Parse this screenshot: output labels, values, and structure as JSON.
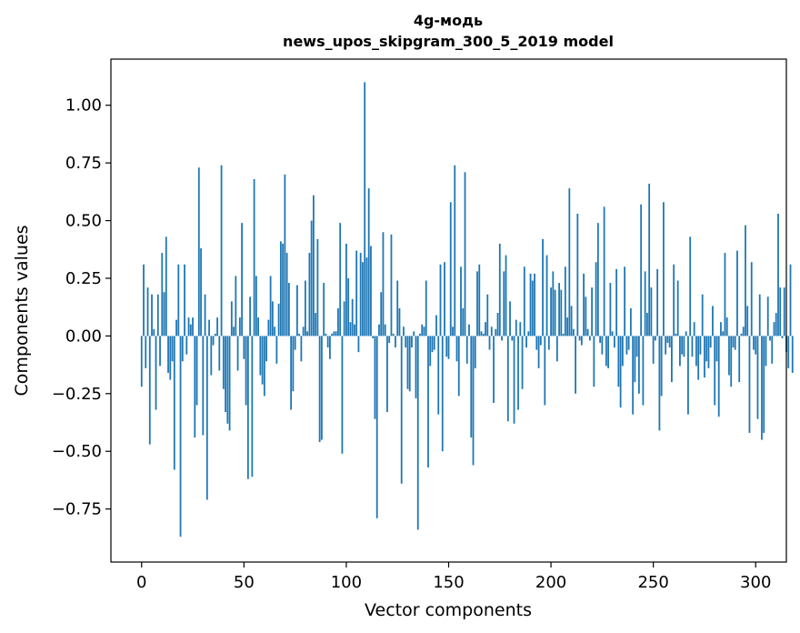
{
  "chart_data": {
    "type": "bar",
    "title": "4g-модь",
    "subtitle": "news_upos_skipgram_300_5_2019 model",
    "xlabel": "Vector components",
    "ylabel": "Components values",
    "xlim": [
      -15,
      315
    ],
    "ylim": [
      -0.98,
      1.2
    ],
    "xticks": [
      0,
      50,
      100,
      150,
      200,
      250,
      300
    ],
    "xtick_labels": [
      "0",
      "50",
      "100",
      "150",
      "200",
      "250",
      "300"
    ],
    "yticks": [
      1.0,
      0.75,
      0.5,
      0.25,
      0.0,
      -0.25,
      -0.5,
      -0.75
    ],
    "ytick_labels": [
      "1.00",
      "0.75",
      "0.50",
      "0.25",
      "0.00",
      "−0.25",
      "−0.50",
      "−0.75"
    ],
    "grid": false,
    "bar_color": "#1f77b4",
    "x_start": 0,
    "values": [
      -0.22,
      0.31,
      -0.14,
      0.21,
      -0.47,
      0.18,
      0.03,
      -0.32,
      0.18,
      -0.13,
      0.36,
      0.19,
      0.43,
      -0.16,
      -0.19,
      -0.11,
      -0.58,
      0.07,
      0.31,
      -0.87,
      -0.11,
      0.31,
      -0.08,
      0.08,
      0.05,
      0.08,
      -0.44,
      -0.3,
      0.73,
      0.38,
      -0.43,
      0.18,
      -0.71,
      0.07,
      -0.17,
      -0.04,
      0.01,
      0.08,
      -0.15,
      0.74,
      -0.23,
      -0.33,
      -0.38,
      -0.41,
      0.15,
      0.04,
      0.26,
      -0.15,
      0.08,
      0.49,
      -0.1,
      -0.3,
      -0.62,
      0.17,
      -0.61,
      0.68,
      0.26,
      0.08,
      -0.17,
      -0.21,
      -0.26,
      -0.11,
      0.07,
      0.26,
      0.15,
      0.04,
      -0.12,
      0.14,
      0.41,
      0.4,
      0.7,
      0.36,
      0.23,
      -0.32,
      -0.24,
      -0.06,
      0.22,
      0.01,
      -0.11,
      0.04,
      0.24,
      0.02,
      0.36,
      0.5,
      0.61,
      0.1,
      0.42,
      -0.46,
      -0.45,
      0.23,
      0.01,
      -0.05,
      -0.1,
      0.01,
      0.02,
      0.02,
      0.12,
      0.49,
      -0.51,
      0.15,
      0.4,
      0.25,
      0.06,
      0.16,
      0.05,
      0.37,
      -0.07,
      0.36,
      0.32,
      1.1,
      0.34,
      0.64,
      0.39,
      -0.01,
      -0.36,
      -0.79,
      0.05,
      0.19,
      0.45,
      0.05,
      -0.33,
      -0.03,
      0.44,
      0.01,
      -0.05,
      0.24,
      0.12,
      -0.64,
      0.04,
      -0.05,
      -0.23,
      -0.24,
      -0.05,
      0.02,
      -0.27,
      -0.84,
      0.01,
      0.05,
      0.04,
      0.24,
      -0.57,
      -0.13,
      -0.07,
      -0.06,
      0.09,
      -0.34,
      0.31,
      -0.5,
      0.32,
      -0.09,
      -0.1,
      0.58,
      0.04,
      0.74,
      -0.11,
      -0.26,
      0.3,
      0.12,
      0.71,
      -0.12,
      0.05,
      -0.44,
      -0.56,
      -0.14,
      0.28,
      0.31,
      0.02,
      0.01,
      0.06,
      0.18,
      -0.06,
      0.04,
      -0.29,
      0.03,
      0.1,
      0.4,
      -0.02,
      0.28,
      0.35,
      -0.37,
      0.15,
      -0.02,
      -0.38,
      0.07,
      -0.32,
      0.06,
      -0.23,
      0.3,
      -0.05,
      0.02,
      0.27,
      0.24,
      0.27,
      -0.06,
      -0.14,
      -0.04,
      0.42,
      -0.3,
      0.35,
      -0.06,
      0.21,
      0.28,
      0.2,
      -0.11,
      0.23,
      0.2,
      0.01,
      0.3,
      0.08,
      0.64,
      0.13,
      0.03,
      -0.25,
      0.53,
      -0.02,
      -0.04,
      0.27,
      0.17,
      0.03,
      -0.02,
      0.21,
      -0.22,
      0.32,
      0.49,
      -0.03,
      -0.08,
      0.56,
      -0.13,
      -0.14,
      0.23,
      0.02,
      -0.05,
      0.29,
      -0.22,
      -0.31,
      -0.13,
      0.3,
      -0.08,
      -0.06,
      0.12,
      -0.34,
      -0.2,
      -0.09,
      -0.25,
      0.57,
      -0.3,
      0.28,
      0.1,
      0.66,
      0.21,
      -0.12,
      -0.02,
      0.29,
      -0.41,
      -0.26,
      0.58,
      -0.08,
      -0.03,
      -0.05,
      -0.2,
      0.31,
      0.01,
      0.24,
      -0.13,
      -0.08,
      -0.09,
      0.02,
      -0.34,
      0.43,
      -0.09,
      0.06,
      -0.13,
      -0.19,
      -0.08,
      0.18,
      -0.18,
      -0.11,
      -0.14,
      -0.05,
      0.13,
      -0.3,
      -0.11,
      -0.35,
      0.06,
      0.02,
      0.36,
      0.08,
      -0.17,
      -0.22,
      -0.05,
      -0.06,
      0.37,
      -0.2,
      0.01,
      0.04,
      0.48,
      0.13,
      -0.42,
      0.32,
      -0.06,
      -0.08,
      -0.36,
      0.18,
      -0.45,
      -0.42,
      -0.13,
      0.17,
      -0.02,
      -0.12,
      0.06,
      0.1,
      0.53,
      0.21,
      -0.01,
      0.21,
      -0.07,
      -0.14,
      0.31,
      -0.16
    ]
  }
}
